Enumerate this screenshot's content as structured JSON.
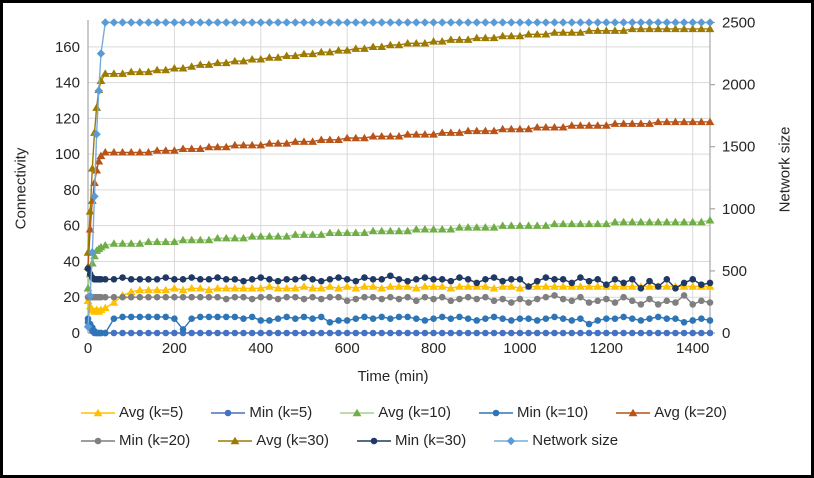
{
  "chart_data": {
    "type": "line",
    "title": "",
    "xlabel": "Time (min)",
    "ylabel_left": "Connectivity",
    "ylabel_right": "Network size",
    "x_ticks": [
      0,
      200,
      400,
      600,
      800,
      1000,
      1200,
      1400
    ],
    "left_ticks": [
      0,
      20,
      40,
      60,
      80,
      100,
      120,
      140,
      160
    ],
    "right_ticks": [
      0,
      500,
      1000,
      1500,
      2000,
      2500
    ],
    "xlim": [
      0,
      1440
    ],
    "left_ylim": [
      0,
      175
    ],
    "right_ylim": [
      0,
      2520
    ],
    "grid": true,
    "legend_position": "bottom",
    "legend_rows": [
      [
        0,
        1,
        2,
        3,
        4
      ],
      [
        5,
        6,
        7,
        8
      ]
    ],
    "x": [
      0,
      5,
      10,
      15,
      20,
      25,
      30,
      40,
      60,
      80,
      100,
      120,
      140,
      160,
      180,
      200,
      220,
      240,
      260,
      280,
      300,
      320,
      340,
      360,
      380,
      400,
      420,
      440,
      460,
      480,
      500,
      520,
      540,
      560,
      580,
      600,
      620,
      640,
      660,
      680,
      700,
      720,
      740,
      760,
      780,
      800,
      820,
      840,
      860,
      880,
      900,
      920,
      940,
      960,
      980,
      1000,
      1020,
      1040,
      1060,
      1080,
      1100,
      1120,
      1140,
      1160,
      1180,
      1200,
      1220,
      1240,
      1260,
      1280,
      1300,
      1320,
      1340,
      1360,
      1380,
      1400,
      1420,
      1440
    ],
    "series": [
      {
        "name": "Avg (k=5)",
        "axis": "left",
        "marker": "triangle",
        "line_color": "#FFC000",
        "marker_color": "#FFC000",
        "values": [
          18,
          15,
          13,
          12,
          13,
          12,
          13,
          14,
          17,
          21,
          23,
          24,
          24,
          24,
          24,
          25,
          24,
          25,
          25,
          24,
          25,
          25,
          25,
          25,
          25,
          25,
          26,
          25,
          25,
          25,
          26,
          25,
          25,
          26,
          25,
          26,
          25,
          26,
          26,
          25,
          26,
          26,
          26,
          25,
          26,
          26,
          26,
          25,
          26,
          26,
          26,
          26,
          25,
          26,
          26,
          25,
          26,
          26,
          26,
          26,
          26,
          26,
          26,
          26,
          26,
          26,
          26,
          26,
          26,
          26,
          26,
          26,
          26,
          26,
          26,
          26,
          26,
          26
        ]
      },
      {
        "name": "Min (k=5)",
        "axis": "left",
        "marker": "circle",
        "line_color": "#4472C4",
        "marker_color": "#4472C4",
        "values": [
          6,
          3,
          1,
          0,
          0,
          0,
          0,
          0,
          0,
          0,
          0,
          0,
          0,
          0,
          0,
          0,
          0,
          0,
          0,
          0,
          0,
          0,
          0,
          0,
          0,
          0,
          0,
          0,
          0,
          0,
          0,
          0,
          0,
          0,
          0,
          0,
          0,
          0,
          0,
          0,
          0,
          0,
          0,
          0,
          0,
          0,
          0,
          0,
          0,
          0,
          0,
          0,
          0,
          0,
          0,
          0,
          0,
          0,
          0,
          0,
          0,
          0,
          0,
          0,
          0,
          0,
          0,
          0,
          0,
          0,
          0,
          0,
          0,
          0,
          0,
          0,
          0,
          0
        ]
      },
      {
        "name": "Avg (k=10)",
        "axis": "left",
        "marker": "triangle",
        "line_color": "#A9D18E",
        "marker_color": "#70AD47",
        "values": [
          25,
          33,
          39,
          43,
          46,
          47,
          48,
          49,
          50,
          50,
          50,
          50,
          51,
          51,
          51,
          51,
          52,
          52,
          52,
          52,
          53,
          53,
          53,
          53,
          54,
          54,
          54,
          54,
          54,
          55,
          55,
          55,
          55,
          56,
          56,
          56,
          56,
          56,
          57,
          57,
          57,
          57,
          57,
          58,
          58,
          58,
          58,
          58,
          59,
          59,
          59,
          59,
          59,
          60,
          60,
          60,
          60,
          60,
          60,
          61,
          61,
          61,
          61,
          61,
          61,
          61,
          62,
          62,
          62,
          62,
          62,
          62,
          62,
          62,
          62,
          62,
          62,
          63
        ]
      },
      {
        "name": "Min (k=10)",
        "axis": "left",
        "marker": "circle",
        "line_color": "#2E75B6",
        "marker_color": "#2E75B6",
        "values": [
          8,
          5,
          3,
          1,
          0,
          0,
          0,
          0,
          8,
          9,
          9,
          9,
          9,
          9,
          9,
          8,
          2,
          8,
          9,
          9,
          9,
          9,
          9,
          8,
          9,
          7,
          7,
          8,
          9,
          8,
          9,
          8,
          9,
          6,
          7,
          7,
          8,
          9,
          8,
          9,
          8,
          9,
          9,
          8,
          7,
          8,
          9,
          8,
          9,
          8,
          7,
          8,
          9,
          8,
          7,
          8,
          8,
          7,
          8,
          9,
          8,
          7,
          8,
          5,
          7,
          8,
          8,
          9,
          8,
          7,
          8,
          9,
          8,
          8,
          6,
          7,
          8,
          7
        ]
      },
      {
        "name": "Avg (k=20)",
        "axis": "left",
        "marker": "triangle",
        "line_color": "#B85417",
        "marker_color": "#B85417",
        "values": [
          37,
          58,
          74,
          84,
          91,
          96,
          99,
          101,
          101,
          101,
          101,
          101,
          101,
          102,
          102,
          102,
          103,
          103,
          103,
          104,
          104,
          104,
          105,
          105,
          105,
          105,
          106,
          106,
          106,
          107,
          107,
          107,
          108,
          108,
          108,
          109,
          109,
          109,
          110,
          110,
          110,
          110,
          111,
          111,
          111,
          111,
          112,
          112,
          112,
          113,
          113,
          113,
          113,
          114,
          114,
          114,
          114,
          115,
          115,
          115,
          115,
          116,
          116,
          116,
          116,
          116,
          117,
          117,
          117,
          117,
          117,
          118,
          118,
          118,
          118,
          118,
          118,
          118
        ]
      },
      {
        "name": "Min (k=20)",
        "axis": "left",
        "marker": "circle",
        "line_color": "#7F7F7F",
        "marker_color": "#7F7F7F",
        "values": [
          20,
          20,
          20,
          20,
          20,
          20,
          20,
          20,
          20,
          20,
          20,
          20,
          20,
          20,
          20,
          20,
          20,
          20,
          20,
          20,
          20,
          19,
          20,
          20,
          19,
          20,
          20,
          19,
          20,
          20,
          19,
          20,
          19,
          20,
          20,
          18,
          19,
          20,
          20,
          19,
          20,
          19,
          20,
          18,
          20,
          19,
          20,
          18,
          19,
          20,
          19,
          20,
          18,
          19,
          17,
          19,
          17,
          19,
          20,
          21,
          19,
          18,
          20,
          17,
          18,
          19,
          17,
          20,
          18,
          16,
          19,
          16,
          18,
          17,
          21,
          16,
          18,
          17
        ]
      },
      {
        "name": "Avg (k=30)",
        "axis": "left",
        "marker": "triangle",
        "line_color": "#9D7A00",
        "marker_color": "#9D7A00",
        "values": [
          45,
          68,
          92,
          112,
          126,
          136,
          141,
          145,
          145,
          145,
          146,
          146,
          146,
          147,
          147,
          148,
          148,
          149,
          150,
          150,
          151,
          151,
          152,
          152,
          153,
          153,
          154,
          154,
          155,
          155,
          156,
          156,
          157,
          157,
          158,
          158,
          159,
          159,
          160,
          160,
          161,
          161,
          162,
          162,
          162,
          163,
          163,
          164,
          164,
          164,
          165,
          165,
          165,
          166,
          166,
          166,
          167,
          167,
          167,
          168,
          168,
          168,
          168,
          169,
          169,
          169,
          169,
          169,
          170,
          170,
          170,
          170,
          170,
          170,
          170,
          170,
          170,
          170
        ]
      },
      {
        "name": "Min (k=30)",
        "axis": "left",
        "marker": "circle",
        "line_color": "#1F3864",
        "marker_color": "#1F3864",
        "values": [
          36,
          33,
          31,
          30,
          30,
          30,
          30,
          30,
          30,
          31,
          30,
          30,
          30,
          30,
          31,
          30,
          30,
          31,
          30,
          30,
          31,
          30,
          30,
          29,
          30,
          31,
          30,
          29,
          30,
          30,
          31,
          30,
          29,
          30,
          31,
          30,
          29,
          31,
          30,
          30,
          32,
          30,
          29,
          30,
          31,
          30,
          30,
          29,
          31,
          30,
          28,
          30,
          31,
          29,
          30,
          30,
          26,
          29,
          31,
          30,
          30,
          28,
          31,
          29,
          30,
          27,
          30,
          28,
          30,
          25,
          29,
          26,
          30,
          25,
          28,
          30,
          27,
          28
        ]
      },
      {
        "name": "Network size",
        "axis": "right",
        "marker": "diamond",
        "line_color": "#79ACDC",
        "marker_color": "#5B9BD5",
        "values": [
          50,
          300,
          650,
          1100,
          1600,
          1950,
          2250,
          2500,
          2500,
          2500,
          2500,
          2500,
          2500,
          2500,
          2500,
          2500,
          2500,
          2500,
          2500,
          2500,
          2500,
          2500,
          2500,
          2500,
          2500,
          2500,
          2500,
          2500,
          2500,
          2500,
          2500,
          2500,
          2500,
          2500,
          2500,
          2500,
          2500,
          2500,
          2500,
          2500,
          2500,
          2500,
          2500,
          2500,
          2500,
          2500,
          2500,
          2500,
          2500,
          2500,
          2500,
          2500,
          2500,
          2500,
          2500,
          2500,
          2500,
          2500,
          2500,
          2500,
          2500,
          2500,
          2500,
          2500,
          2500,
          2500,
          2500,
          2500,
          2500,
          2500,
          2500,
          2500,
          2500,
          2500,
          2500,
          2500,
          2500,
          2500
        ]
      }
    ],
    "colors": {
      "gridline": "#D9D9D9",
      "axis_line": "#A6A6A6",
      "text": "#262626"
    }
  }
}
